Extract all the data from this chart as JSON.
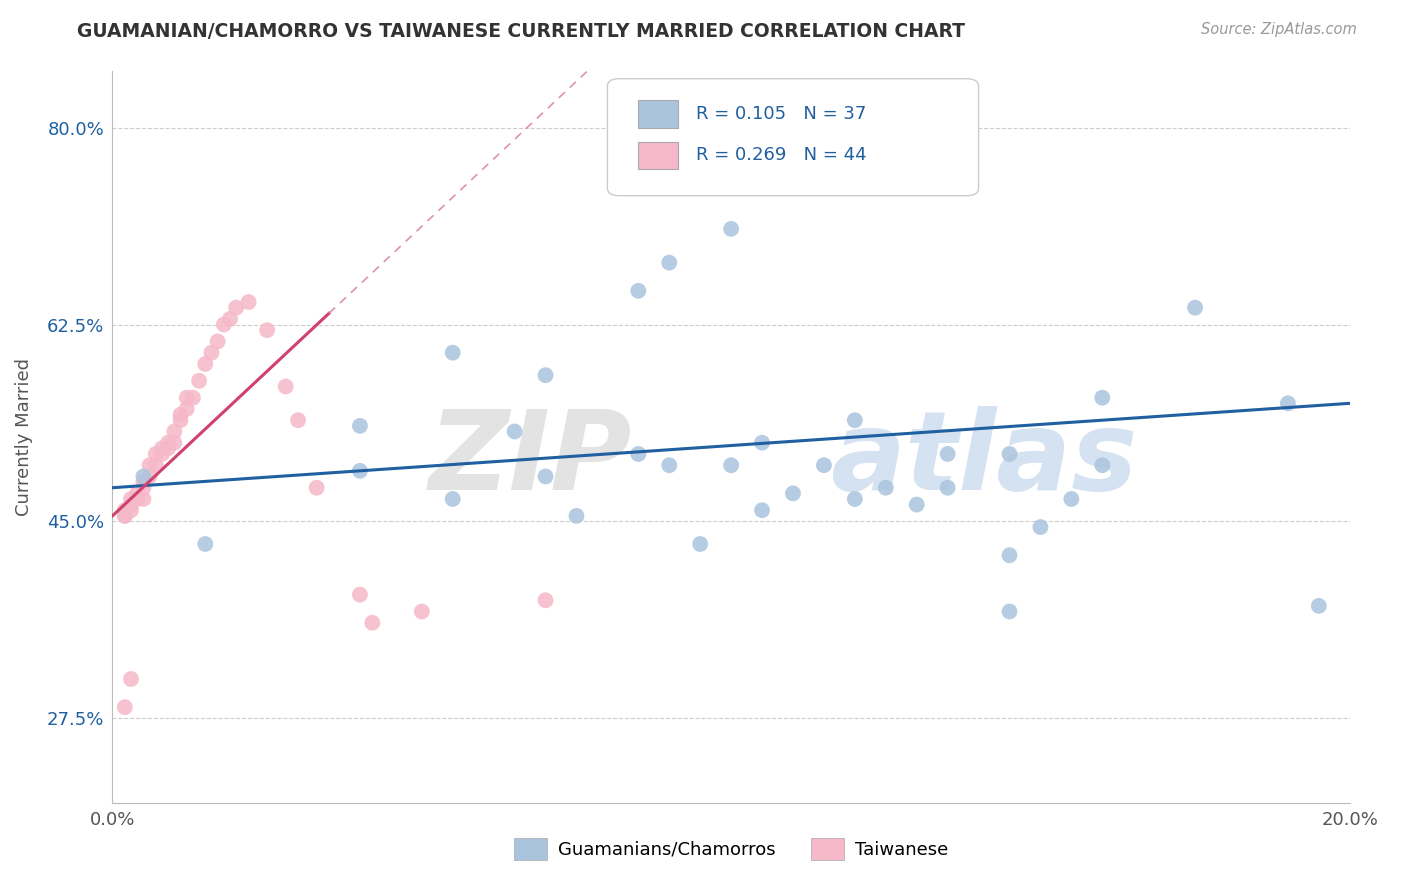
{
  "title": "GUAMANIAN/CHAMORRO VS TAIWANESE CURRENTLY MARRIED CORRELATION CHART",
  "source": "Source: ZipAtlas.com",
  "ylabel": "Currently Married",
  "xmin": 0.0,
  "xmax": 0.2,
  "ymin": 0.2,
  "ymax": 0.85,
  "yticks": [
    0.275,
    0.45,
    0.625,
    0.8
  ],
  "ytick_labels": [
    "27.5%",
    "45.0%",
    "62.5%",
    "80.0%"
  ],
  "xticks": [
    0.0,
    0.2
  ],
  "xtick_labels": [
    "0.0%",
    "20.0%"
  ],
  "blue_R": 0.105,
  "blue_N": 37,
  "pink_R": 0.269,
  "pink_N": 44,
  "blue_color": "#aac4de",
  "pink_color": "#f5b8c8",
  "blue_line_color": "#2060a0",
  "pink_line_color": "#d04070",
  "pink_line_dash_color": "#e090b0",
  "legend_blue_color": "#aac4de",
  "legend_pink_color": "#f5b8c8",
  "blue_scatter_x": [
    0.005,
    0.015,
    0.04,
    0.04,
    0.055,
    0.065,
    0.07,
    0.075,
    0.085,
    0.09,
    0.095,
    0.1,
    0.105,
    0.11,
    0.115,
    0.12,
    0.125,
    0.13,
    0.135,
    0.145,
    0.15,
    0.155,
    0.16,
    0.055,
    0.07,
    0.085,
    0.09,
    0.1,
    0.105,
    0.12,
    0.135,
    0.145,
    0.16,
    0.175,
    0.19,
    0.195,
    0.145
  ],
  "blue_scatter_y": [
    0.49,
    0.43,
    0.535,
    0.495,
    0.47,
    0.53,
    0.49,
    0.455,
    0.51,
    0.5,
    0.43,
    0.5,
    0.46,
    0.475,
    0.5,
    0.47,
    0.48,
    0.465,
    0.48,
    0.42,
    0.445,
    0.47,
    0.5,
    0.6,
    0.58,
    0.655,
    0.68,
    0.71,
    0.52,
    0.54,
    0.51,
    0.51,
    0.56,
    0.64,
    0.555,
    0.375,
    0.37
  ],
  "pink_scatter_x": [
    0.002,
    0.002,
    0.002,
    0.003,
    0.003,
    0.003,
    0.004,
    0.004,
    0.005,
    0.005,
    0.005,
    0.006,
    0.006,
    0.007,
    0.007,
    0.008,
    0.008,
    0.009,
    0.009,
    0.01,
    0.01,
    0.011,
    0.011,
    0.012,
    0.012,
    0.013,
    0.014,
    0.015,
    0.016,
    0.017,
    0.018,
    0.019,
    0.02,
    0.022,
    0.025,
    0.028,
    0.03,
    0.033,
    0.04,
    0.042,
    0.05,
    0.07,
    0.002,
    0.003
  ],
  "pink_scatter_y": [
    0.455,
    0.455,
    0.46,
    0.46,
    0.465,
    0.47,
    0.47,
    0.475,
    0.47,
    0.48,
    0.485,
    0.49,
    0.5,
    0.5,
    0.51,
    0.51,
    0.515,
    0.515,
    0.52,
    0.52,
    0.53,
    0.54,
    0.545,
    0.55,
    0.56,
    0.56,
    0.575,
    0.59,
    0.6,
    0.61,
    0.625,
    0.63,
    0.64,
    0.645,
    0.62,
    0.57,
    0.54,
    0.48,
    0.385,
    0.36,
    0.37,
    0.38,
    0.285,
    0.31
  ]
}
